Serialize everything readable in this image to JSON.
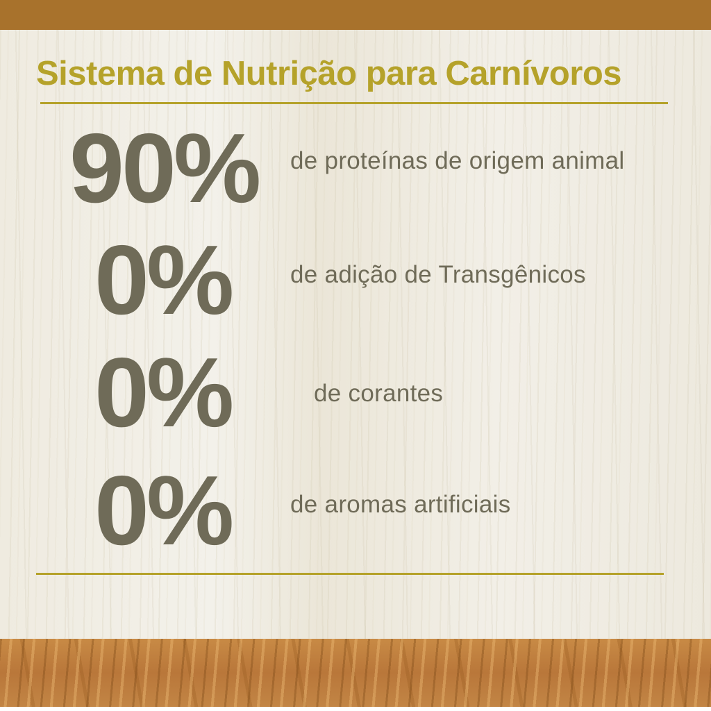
{
  "title": "Sistema de Nutrição para Carnívoros",
  "colors": {
    "top_bar": "#a8722c",
    "title": "#b5a22a",
    "text": "#6f6b58"
  },
  "items": [
    {
      "value": "90%",
      "label": "de proteínas de origem animal"
    },
    {
      "value": "0%",
      "label": "de adição de Transgênicos"
    },
    {
      "value": "0%",
      "label": "de corantes"
    },
    {
      "value": "0%",
      "label": "de aromas artificiais"
    }
  ]
}
